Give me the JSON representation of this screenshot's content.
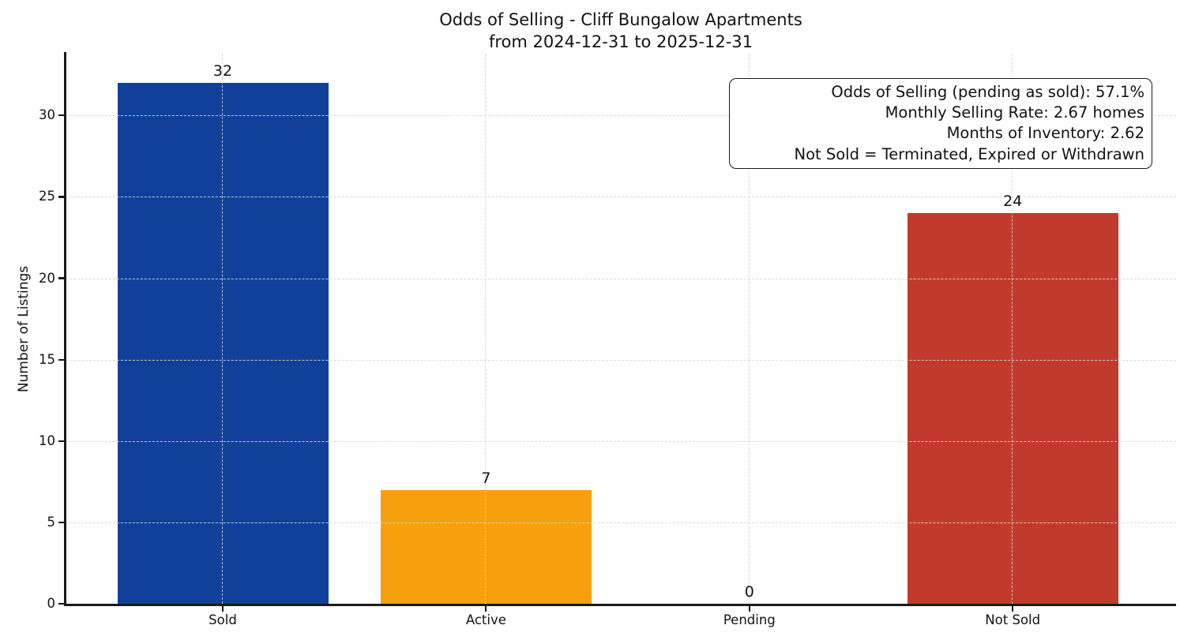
{
  "chart_data": {
    "type": "bar",
    "title": "Odds of Selling - Cliff Bungalow Apartments\nfrom 2024-12-31 to 2025-12-31",
    "title_lines": [
      "Odds of Selling - Cliff Bungalow Apartments",
      "from 2024-12-31 to 2025-12-31"
    ],
    "categories": [
      "Sold",
      "Active",
      "Pending",
      "Not Sold"
    ],
    "values": [
      32,
      7,
      0,
      24
    ],
    "bar_labels": [
      "32",
      "7",
      "0",
      "24"
    ],
    "bar_colors": [
      "#11409a",
      "#f5a00c",
      "#8a8a8a",
      "#c23a2b"
    ],
    "xlabel": "",
    "ylabel": "Number of Listings",
    "yticks": [
      0,
      5,
      10,
      15,
      20,
      25,
      30
    ],
    "ylim": [
      0,
      33.8
    ],
    "grid": "dashed, both axes, drawn over bars",
    "legend": "none",
    "colors": {
      "background": "#ffffff",
      "text": "#111111",
      "grid": "#d7d7d7",
      "spine": "#1a1a1a"
    },
    "annotation_lines": [
      "Odds of Selling (pending as sold): 57.1%",
      "Monthly Selling Rate: 2.67 homes",
      "Months of Inventory: 2.62",
      "Not Sold = Terminated, Expired or Withdrawn"
    ]
  }
}
